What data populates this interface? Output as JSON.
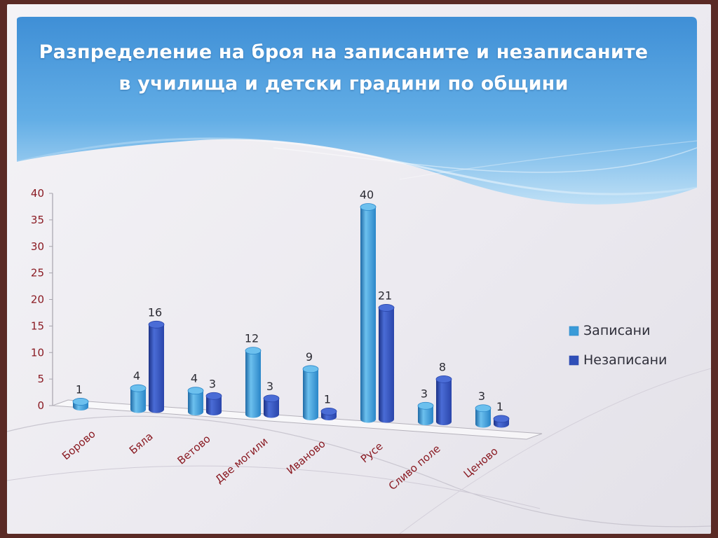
{
  "slide": {
    "title": "Разпределение на броя на записаните и незаписаните в училища и детски градини по общини"
  },
  "colors": {
    "banner_top": "#3f8fd6",
    "banner_bottom": "#bfe0f6",
    "series1": "#3a9bd8",
    "series2": "#2f4fb8",
    "label_red": "#8a1a22"
  },
  "chart_data": {
    "type": "bar",
    "title": "Разпределение на броя на записаните и незаписаните в училища и детски градини по общини",
    "categories": [
      "Борово",
      "Бяла",
      "Ветово",
      "Две могили",
      "Иваново",
      "Русе",
      "Сливо поле",
      "Ценово"
    ],
    "series": [
      {
        "name": "Записани",
        "values": [
          1,
          4,
          4,
          12,
          9,
          40,
          3,
          3
        ]
      },
      {
        "name": "Незаписани",
        "values": [
          null,
          16,
          3,
          3,
          1,
          21,
          8,
          1
        ]
      }
    ],
    "ylim": [
      0,
      40
    ],
    "yticks": [
      "0",
      "5",
      "10",
      "15",
      "20",
      "25",
      "30",
      "35",
      "40"
    ],
    "legend_position": "right",
    "grid": false
  }
}
